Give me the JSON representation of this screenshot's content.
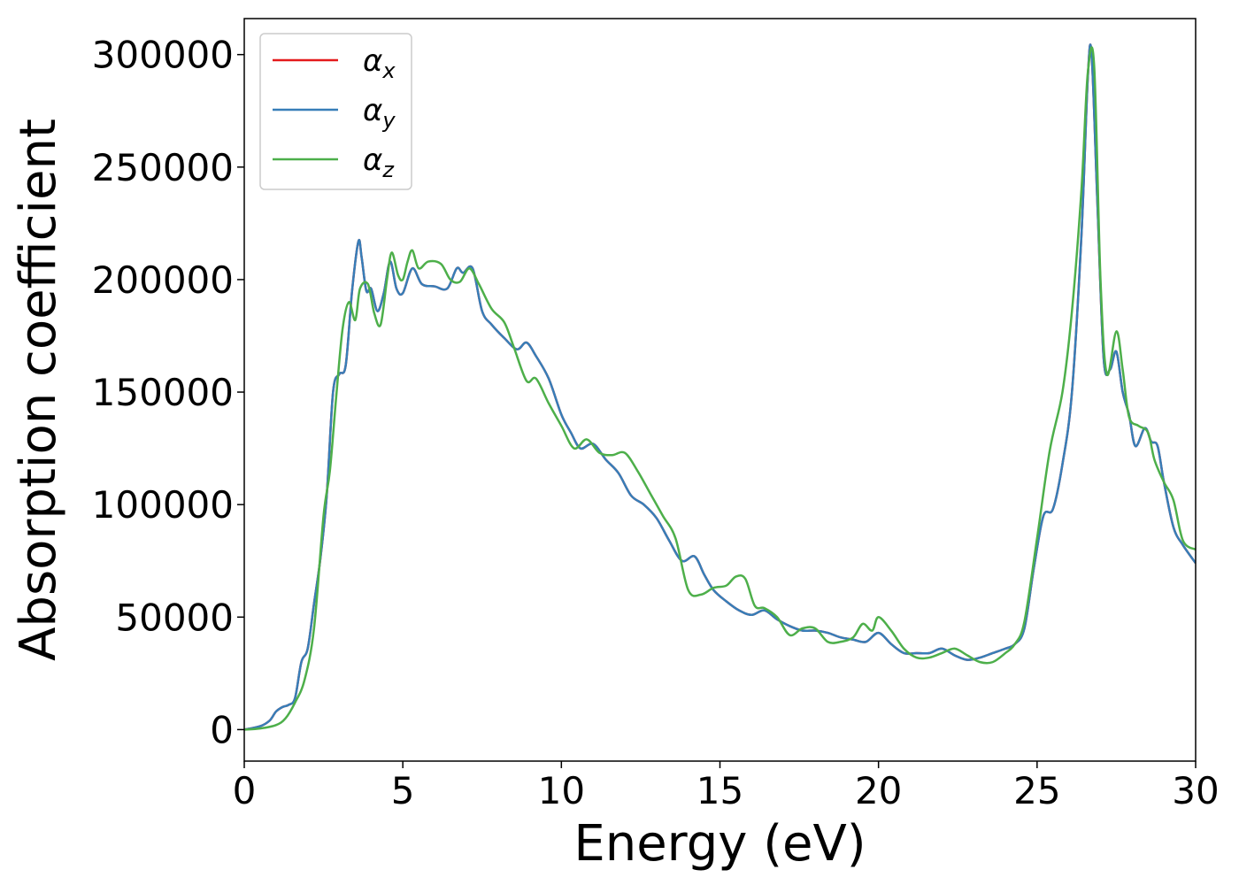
{
  "chart_data": {
    "type": "line",
    "title": "",
    "xlabel": "Energy (eV)",
    "ylabel": "Absorption coefficient",
    "xlim": [
      0,
      30
    ],
    "ylim": [
      -14000,
      316000
    ],
    "xticks": [
      0,
      5,
      10,
      15,
      20,
      25,
      30
    ],
    "yticks": [
      0,
      50000,
      100000,
      150000,
      200000,
      250000,
      300000
    ],
    "grid": false,
    "legend": "top-left",
    "series": [
      {
        "name": "α",
        "subscript": "x",
        "color": "#e41a1c",
        "x": [
          0,
          0.5,
          0.8,
          1.0,
          1.2,
          1.4,
          1.6,
          1.8,
          2.0,
          2.2,
          2.4,
          2.6,
          2.8,
          3.0,
          3.2,
          3.4,
          3.6,
          3.7,
          3.85,
          4.0,
          4.2,
          4.4,
          4.6,
          4.8,
          5.0,
          5.3,
          5.6,
          6.0,
          6.4,
          6.7,
          6.9,
          7.2,
          7.5,
          7.8,
          8.2,
          8.6,
          8.9,
          9.2,
          9.6,
          10.0,
          10.3,
          10.6,
          11.0,
          11.4,
          11.8,
          12.2,
          12.6,
          13.0,
          13.4,
          13.8,
          14.2,
          14.5,
          14.8,
          15.2,
          15.6,
          16.0,
          16.4,
          16.8,
          17.2,
          17.6,
          18.0,
          18.4,
          18.8,
          19.2,
          19.6,
          20.0,
          20.4,
          20.8,
          21.2,
          21.6,
          22.0,
          22.4,
          22.8,
          23.2,
          23.6,
          24.0,
          24.3,
          24.6,
          24.9,
          25.2,
          25.5,
          25.8,
          26.1,
          26.4,
          26.6,
          26.72,
          26.9,
          27.1,
          27.3,
          27.5,
          27.7,
          27.9,
          28.1,
          28.4,
          28.6,
          28.8,
          29.0,
          29.3,
          29.6,
          30.0
        ],
        "y": [
          0,
          1500,
          4000,
          8000,
          10000,
          11000,
          14000,
          30000,
          36000,
          56000,
          76000,
          104000,
          150000,
          158000,
          162000,
          195000,
          217000,
          210000,
          195000,
          196000,
          186000,
          194000,
          208000,
          196000,
          194000,
          205000,
          198000,
          197000,
          196000,
          205000,
          203000,
          205000,
          186000,
          180000,
          174000,
          169000,
          172000,
          166000,
          156000,
          140000,
          132000,
          125000,
          127000,
          120000,
          114000,
          104000,
          100000,
          94000,
          84000,
          75000,
          77000,
          69000,
          62000,
          57000,
          53000,
          51000,
          53000,
          49000,
          46000,
          44000,
          44000,
          43000,
          41000,
          40000,
          39000,
          43000,
          38000,
          34000,
          34000,
          34000,
          36000,
          33000,
          31000,
          32000,
          34000,
          36000,
          38000,
          45000,
          72000,
          95000,
          98000,
          118000,
          150000,
          220000,
          290000,
          300000,
          235000,
          165000,
          160000,
          168000,
          150000,
          140000,
          126000,
          134000,
          128000,
          126000,
          110000,
          90000,
          82000,
          74000
        ]
      },
      {
        "name": "α",
        "subscript": "y",
        "color": "#377eb8",
        "x": [
          0,
          0.5,
          0.8,
          1.0,
          1.2,
          1.4,
          1.6,
          1.8,
          2.0,
          2.2,
          2.4,
          2.6,
          2.8,
          3.0,
          3.2,
          3.4,
          3.6,
          3.7,
          3.85,
          4.0,
          4.2,
          4.4,
          4.6,
          4.8,
          5.0,
          5.3,
          5.6,
          6.0,
          6.4,
          6.7,
          6.9,
          7.2,
          7.5,
          7.8,
          8.2,
          8.6,
          8.9,
          9.2,
          9.6,
          10.0,
          10.3,
          10.6,
          11.0,
          11.4,
          11.8,
          12.2,
          12.6,
          13.0,
          13.4,
          13.8,
          14.2,
          14.5,
          14.8,
          15.2,
          15.6,
          16.0,
          16.4,
          16.8,
          17.2,
          17.6,
          18.0,
          18.4,
          18.8,
          19.2,
          19.6,
          20.0,
          20.4,
          20.8,
          21.2,
          21.6,
          22.0,
          22.4,
          22.8,
          23.2,
          23.6,
          24.0,
          24.3,
          24.6,
          24.9,
          25.2,
          25.5,
          25.8,
          26.1,
          26.4,
          26.6,
          26.72,
          26.9,
          27.1,
          27.3,
          27.5,
          27.7,
          27.9,
          28.1,
          28.4,
          28.6,
          28.8,
          29.0,
          29.3,
          29.6,
          30.0
        ],
        "y": [
          0,
          1500,
          4000,
          8000,
          10000,
          11000,
          14000,
          30000,
          36000,
          56000,
          76000,
          104000,
          150000,
          158000,
          162000,
          195000,
          217000,
          210000,
          195000,
          196000,
          186000,
          194000,
          208000,
          196000,
          194000,
          205000,
          198000,
          197000,
          196000,
          205000,
          203000,
          205000,
          186000,
          180000,
          174000,
          169000,
          172000,
          166000,
          156000,
          140000,
          132000,
          125000,
          127000,
          120000,
          114000,
          104000,
          100000,
          94000,
          84000,
          75000,
          77000,
          69000,
          62000,
          57000,
          53000,
          51000,
          53000,
          49000,
          46000,
          44000,
          44000,
          43000,
          41000,
          40000,
          39000,
          43000,
          38000,
          34000,
          34000,
          34000,
          36000,
          33000,
          31000,
          32000,
          34000,
          36000,
          38000,
          45000,
          72000,
          95000,
          98000,
          118000,
          150000,
          220000,
          290000,
          300000,
          235000,
          165000,
          160000,
          168000,
          150000,
          140000,
          126000,
          134000,
          128000,
          126000,
          110000,
          90000,
          82000,
          74000
        ]
      },
      {
        "name": "α",
        "subscript": "z",
        "color": "#4daf4a",
        "x": [
          0,
          0.5,
          1.0,
          1.3,
          1.6,
          1.9,
          2.2,
          2.5,
          2.7,
          2.9,
          3.1,
          3.3,
          3.5,
          3.65,
          3.9,
          4.1,
          4.3,
          4.5,
          4.65,
          4.85,
          5.0,
          5.15,
          5.3,
          5.5,
          5.8,
          6.2,
          6.5,
          6.8,
          7.1,
          7.4,
          7.8,
          8.2,
          8.5,
          8.9,
          9.2,
          9.6,
          10.0,
          10.4,
          10.8,
          11.2,
          11.6,
          12.0,
          12.4,
          12.8,
          13.2,
          13.6,
          14.0,
          14.4,
          14.8,
          15.2,
          15.5,
          15.8,
          16.1,
          16.4,
          16.8,
          17.2,
          17.6,
          18.0,
          18.4,
          18.8,
          19.2,
          19.5,
          19.8,
          20.0,
          20.4,
          20.8,
          21.2,
          21.6,
          22.0,
          22.4,
          22.8,
          23.2,
          23.6,
          24.0,
          24.3,
          24.6,
          25.0,
          25.4,
          25.8,
          26.1,
          26.4,
          26.6,
          26.8,
          27.0,
          27.2,
          27.5,
          27.7,
          27.9,
          28.2,
          28.5,
          28.7,
          29.0,
          29.3,
          29.6,
          30.0
        ],
        "y": [
          0,
          500,
          2000,
          5000,
          12000,
          22000,
          45000,
          95000,
          115000,
          148000,
          178000,
          190000,
          182000,
          196000,
          198000,
          185000,
          180000,
          200000,
          212000,
          202000,
          200000,
          208000,
          213000,
          205000,
          208000,
          207000,
          200000,
          199000,
          205000,
          198000,
          187000,
          181000,
          170000,
          155000,
          156000,
          145000,
          135000,
          125000,
          129000,
          123000,
          122000,
          123000,
          115000,
          105000,
          95000,
          85000,
          62000,
          60000,
          63000,
          64000,
          68000,
          67000,
          55000,
          54000,
          50000,
          42000,
          45000,
          45000,
          39000,
          39000,
          41000,
          47000,
          44000,
          50000,
          44000,
          36000,
          32000,
          32000,
          34000,
          36000,
          33000,
          30000,
          30000,
          34000,
          38000,
          48000,
          85000,
          124000,
          150000,
          186000,
          240000,
          292000,
          295000,
          200000,
          158000,
          177000,
          160000,
          139000,
          135000,
          132000,
          120000,
          110000,
          102000,
          84000,
          80000
        ]
      }
    ]
  }
}
